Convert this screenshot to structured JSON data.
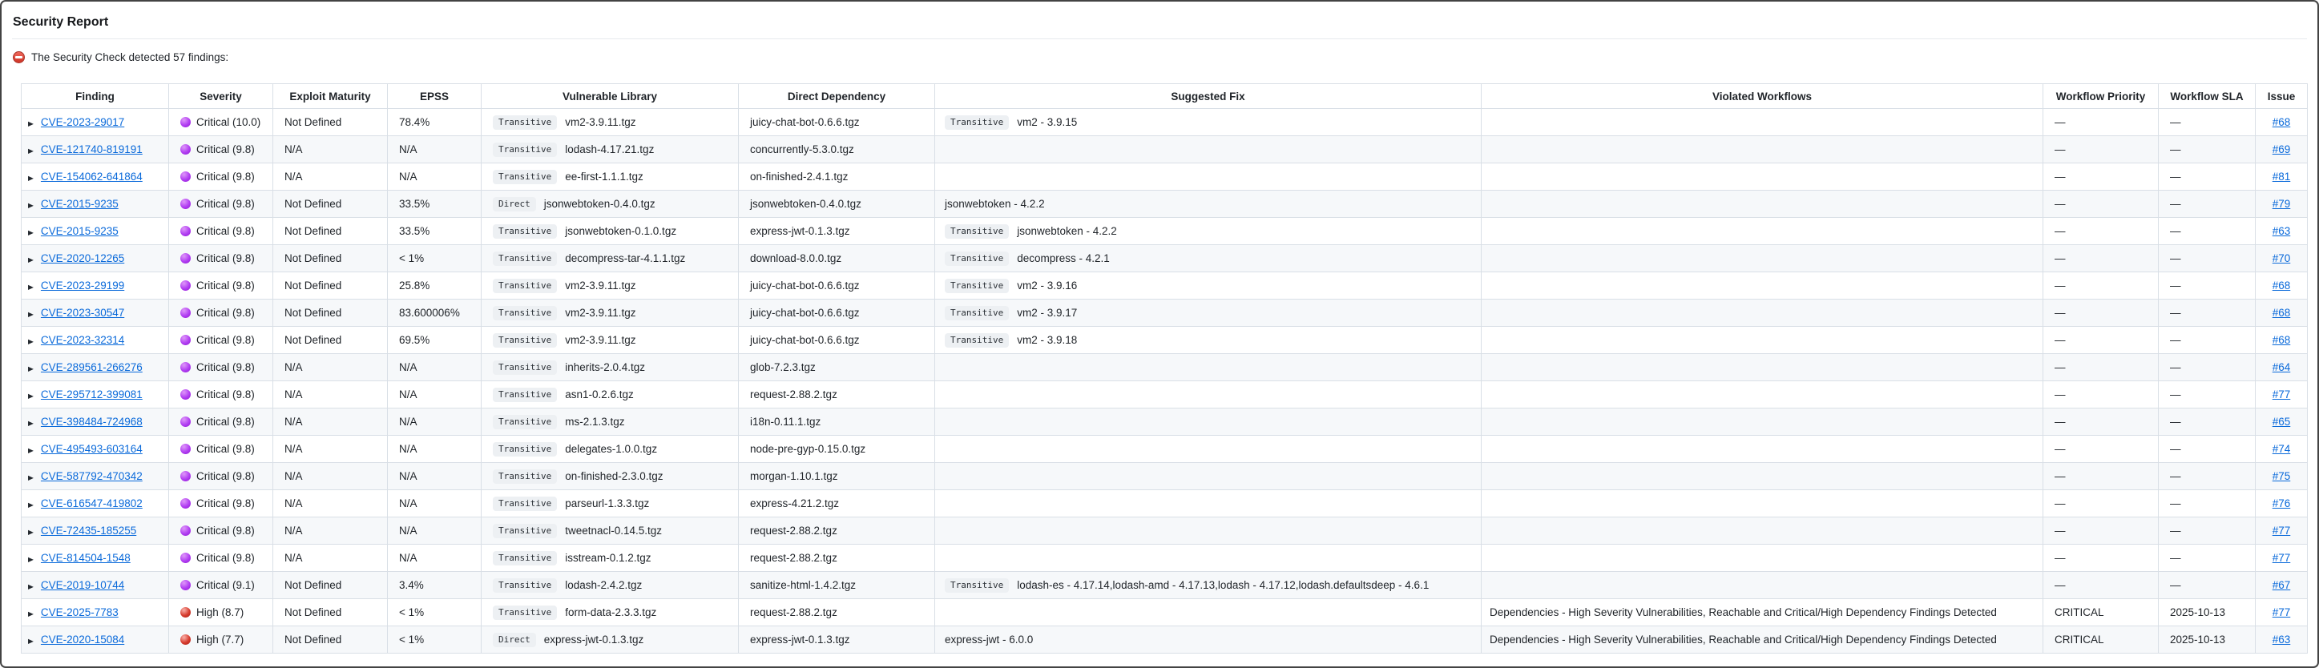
{
  "page": {
    "title": "Security Report"
  },
  "summary": {
    "icon": "no-entry-icon",
    "text": "The Security Check detected 57 findings:"
  },
  "colors": {
    "link_blue": "#0969da",
    "critical_dot_purple": "#b13ef2",
    "high_dot_red": "#d63b2d",
    "badge_background": "#edf0f3",
    "zebra_row": "#f6f8fa",
    "table_border": "#d9dfe6",
    "no_entry_red": "#d23a2c"
  },
  "table": {
    "columns": [
      "Finding",
      "Severity",
      "Exploit Maturity",
      "EPSS",
      "Vulnerable Library",
      "Direct Dependency",
      "Suggested Fix",
      "Violated Workflows",
      "Workflow Priority",
      "Workflow SLA",
      "Issue"
    ],
    "rows": [
      {
        "finding": "CVE-2023-29017",
        "severity_level": "critical",
        "severity_label": "Critical (10.0)",
        "exploit_maturity": "Not Defined",
        "epss": "78.4%",
        "vuln_scope": "Transitive",
        "vuln_library": "vm2-3.9.11.tgz",
        "direct_dependency": "juicy-chat-bot-0.6.6.tgz",
        "fix_scope": "Transitive",
        "suggested_fix": "vm2 - 3.9.15",
        "violated_workflows": "",
        "workflow_priority": "—",
        "workflow_sla": "—",
        "issue": "#68"
      },
      {
        "finding": "CVE-121740-819191",
        "severity_level": "critical",
        "severity_label": "Critical (9.8)",
        "exploit_maturity": "N/A",
        "epss": "N/A",
        "vuln_scope": "Transitive",
        "vuln_library": "lodash-4.17.21.tgz",
        "direct_dependency": "concurrently-5.3.0.tgz",
        "fix_scope": null,
        "suggested_fix": "",
        "violated_workflows": "",
        "workflow_priority": "—",
        "workflow_sla": "—",
        "issue": "#69"
      },
      {
        "finding": "CVE-154062-641864",
        "severity_level": "critical",
        "severity_label": "Critical (9.8)",
        "exploit_maturity": "N/A",
        "epss": "N/A",
        "vuln_scope": "Transitive",
        "vuln_library": "ee-first-1.1.1.tgz",
        "direct_dependency": "on-finished-2.4.1.tgz",
        "fix_scope": null,
        "suggested_fix": "",
        "violated_workflows": "",
        "workflow_priority": "—",
        "workflow_sla": "—",
        "issue": "#81"
      },
      {
        "finding": "CVE-2015-9235",
        "severity_level": "critical",
        "severity_label": "Critical (9.8)",
        "exploit_maturity": "Not Defined",
        "epss": "33.5%",
        "vuln_scope": "Direct",
        "vuln_library": "jsonwebtoken-0.4.0.tgz",
        "direct_dependency": "jsonwebtoken-0.4.0.tgz",
        "fix_scope": null,
        "suggested_fix": "jsonwebtoken - 4.2.2",
        "violated_workflows": "",
        "workflow_priority": "—",
        "workflow_sla": "—",
        "issue": "#79"
      },
      {
        "finding": "CVE-2015-9235",
        "severity_level": "critical",
        "severity_label": "Critical (9.8)",
        "exploit_maturity": "Not Defined",
        "epss": "33.5%",
        "vuln_scope": "Transitive",
        "vuln_library": "jsonwebtoken-0.1.0.tgz",
        "direct_dependency": "express-jwt-0.1.3.tgz",
        "fix_scope": "Transitive",
        "suggested_fix": "jsonwebtoken - 4.2.2",
        "violated_workflows": "",
        "workflow_priority": "—",
        "workflow_sla": "—",
        "issue": "#63"
      },
      {
        "finding": "CVE-2020-12265",
        "severity_level": "critical",
        "severity_label": "Critical (9.8)",
        "exploit_maturity": "Not Defined",
        "epss": "< 1%",
        "vuln_scope": "Transitive",
        "vuln_library": "decompress-tar-4.1.1.tgz",
        "direct_dependency": "download-8.0.0.tgz",
        "fix_scope": "Transitive",
        "suggested_fix": "decompress - 4.2.1",
        "violated_workflows": "",
        "workflow_priority": "—",
        "workflow_sla": "—",
        "issue": "#70"
      },
      {
        "finding": "CVE-2023-29199",
        "severity_level": "critical",
        "severity_label": "Critical (9.8)",
        "exploit_maturity": "Not Defined",
        "epss": "25.8%",
        "vuln_scope": "Transitive",
        "vuln_library": "vm2-3.9.11.tgz",
        "direct_dependency": "juicy-chat-bot-0.6.6.tgz",
        "fix_scope": "Transitive",
        "suggested_fix": "vm2 - 3.9.16",
        "violated_workflows": "",
        "workflow_priority": "—",
        "workflow_sla": "—",
        "issue": "#68"
      },
      {
        "finding": "CVE-2023-30547",
        "severity_level": "critical",
        "severity_label": "Critical (9.8)",
        "exploit_maturity": "Not Defined",
        "epss": "83.600006%",
        "vuln_scope": "Transitive",
        "vuln_library": "vm2-3.9.11.tgz",
        "direct_dependency": "juicy-chat-bot-0.6.6.tgz",
        "fix_scope": "Transitive",
        "suggested_fix": "vm2 - 3.9.17",
        "violated_workflows": "",
        "workflow_priority": "—",
        "workflow_sla": "—",
        "issue": "#68"
      },
      {
        "finding": "CVE-2023-32314",
        "severity_level": "critical",
        "severity_label": "Critical (9.8)",
        "exploit_maturity": "Not Defined",
        "epss": "69.5%",
        "vuln_scope": "Transitive",
        "vuln_library": "vm2-3.9.11.tgz",
        "direct_dependency": "juicy-chat-bot-0.6.6.tgz",
        "fix_scope": "Transitive",
        "suggested_fix": "vm2 - 3.9.18",
        "violated_workflows": "",
        "workflow_priority": "—",
        "workflow_sla": "—",
        "issue": "#68"
      },
      {
        "finding": "CVE-289561-266276",
        "severity_level": "critical",
        "severity_label": "Critical (9.8)",
        "exploit_maturity": "N/A",
        "epss": "N/A",
        "vuln_scope": "Transitive",
        "vuln_library": "inherits-2.0.4.tgz",
        "direct_dependency": "glob-7.2.3.tgz",
        "fix_scope": null,
        "suggested_fix": "",
        "violated_workflows": "",
        "workflow_priority": "—",
        "workflow_sla": "—",
        "issue": "#64"
      },
      {
        "finding": "CVE-295712-399081",
        "severity_level": "critical",
        "severity_label": "Critical (9.8)",
        "exploit_maturity": "N/A",
        "epss": "N/A",
        "vuln_scope": "Transitive",
        "vuln_library": "asn1-0.2.6.tgz",
        "direct_dependency": "request-2.88.2.tgz",
        "fix_scope": null,
        "suggested_fix": "",
        "violated_workflows": "",
        "workflow_priority": "—",
        "workflow_sla": "—",
        "issue": "#77"
      },
      {
        "finding": "CVE-398484-724968",
        "severity_level": "critical",
        "severity_label": "Critical (9.8)",
        "exploit_maturity": "N/A",
        "epss": "N/A",
        "vuln_scope": "Transitive",
        "vuln_library": "ms-2.1.3.tgz",
        "direct_dependency": "i18n-0.11.1.tgz",
        "fix_scope": null,
        "suggested_fix": "",
        "violated_workflows": "",
        "workflow_priority": "—",
        "workflow_sla": "—",
        "issue": "#65"
      },
      {
        "finding": "CVE-495493-603164",
        "severity_level": "critical",
        "severity_label": "Critical (9.8)",
        "exploit_maturity": "N/A",
        "epss": "N/A",
        "vuln_scope": "Transitive",
        "vuln_library": "delegates-1.0.0.tgz",
        "direct_dependency": "node-pre-gyp-0.15.0.tgz",
        "fix_scope": null,
        "suggested_fix": "",
        "violated_workflows": "",
        "workflow_priority": "—",
        "workflow_sla": "—",
        "issue": "#74"
      },
      {
        "finding": "CVE-587792-470342",
        "severity_level": "critical",
        "severity_label": "Critical (9.8)",
        "exploit_maturity": "N/A",
        "epss": "N/A",
        "vuln_scope": "Transitive",
        "vuln_library": "on-finished-2.3.0.tgz",
        "direct_dependency": "morgan-1.10.1.tgz",
        "fix_scope": null,
        "suggested_fix": "",
        "violated_workflows": "",
        "workflow_priority": "—",
        "workflow_sla": "—",
        "issue": "#75"
      },
      {
        "finding": "CVE-616547-419802",
        "severity_level": "critical",
        "severity_label": "Critical (9.8)",
        "exploit_maturity": "N/A",
        "epss": "N/A",
        "vuln_scope": "Transitive",
        "vuln_library": "parseurl-1.3.3.tgz",
        "direct_dependency": "express-4.21.2.tgz",
        "fix_scope": null,
        "suggested_fix": "",
        "violated_workflows": "",
        "workflow_priority": "—",
        "workflow_sla": "—",
        "issue": "#76"
      },
      {
        "finding": "CVE-72435-185255",
        "severity_level": "critical",
        "severity_label": "Critical (9.8)",
        "exploit_maturity": "N/A",
        "epss": "N/A",
        "vuln_scope": "Transitive",
        "vuln_library": "tweetnacl-0.14.5.tgz",
        "direct_dependency": "request-2.88.2.tgz",
        "fix_scope": null,
        "suggested_fix": "",
        "violated_workflows": "",
        "workflow_priority": "—",
        "workflow_sla": "—",
        "issue": "#77"
      },
      {
        "finding": "CVE-814504-1548",
        "severity_level": "critical",
        "severity_label": "Critical (9.8)",
        "exploit_maturity": "N/A",
        "epss": "N/A",
        "vuln_scope": "Transitive",
        "vuln_library": "isstream-0.1.2.tgz",
        "direct_dependency": "request-2.88.2.tgz",
        "fix_scope": null,
        "suggested_fix": "",
        "violated_workflows": "",
        "workflow_priority": "—",
        "workflow_sla": "—",
        "issue": "#77"
      },
      {
        "finding": "CVE-2019-10744",
        "severity_level": "critical",
        "severity_label": "Critical (9.1)",
        "exploit_maturity": "Not Defined",
        "epss": "3.4%",
        "vuln_scope": "Transitive",
        "vuln_library": "lodash-2.4.2.tgz",
        "direct_dependency": "sanitize-html-1.4.2.tgz",
        "fix_scope": "Transitive",
        "suggested_fix": "lodash-es - 4.17.14,lodash-amd - 4.17.13,lodash - 4.17.12,lodash.defaultsdeep - 4.6.1",
        "violated_workflows": "",
        "workflow_priority": "—",
        "workflow_sla": "—",
        "issue": "#67"
      },
      {
        "finding": "CVE-2025-7783",
        "severity_level": "high",
        "severity_label": "High (8.7)",
        "exploit_maturity": "Not Defined",
        "epss": "< 1%",
        "vuln_scope": "Transitive",
        "vuln_library": "form-data-2.3.3.tgz",
        "direct_dependency": "request-2.88.2.tgz",
        "fix_scope": null,
        "suggested_fix": "",
        "violated_workflows": "Dependencies - High Severity Vulnerabilities, Reachable and Critical/High Dependency Findings Detected",
        "workflow_priority": "CRITICAL",
        "workflow_sla": "2025-10-13",
        "issue": "#77"
      },
      {
        "finding": "CVE-2020-15084",
        "severity_level": "high",
        "severity_label": "High (7.7)",
        "exploit_maturity": "Not Defined",
        "epss": "< 1%",
        "vuln_scope": "Direct",
        "vuln_library": "express-jwt-0.1.3.tgz",
        "direct_dependency": "express-jwt-0.1.3.tgz",
        "fix_scope": null,
        "suggested_fix": "express-jwt - 6.0.0",
        "violated_workflows": "Dependencies - High Severity Vulnerabilities, Reachable and Critical/High Dependency Findings Detected",
        "workflow_priority": "CRITICAL",
        "workflow_sla": "2025-10-13",
        "issue": "#63"
      }
    ]
  }
}
